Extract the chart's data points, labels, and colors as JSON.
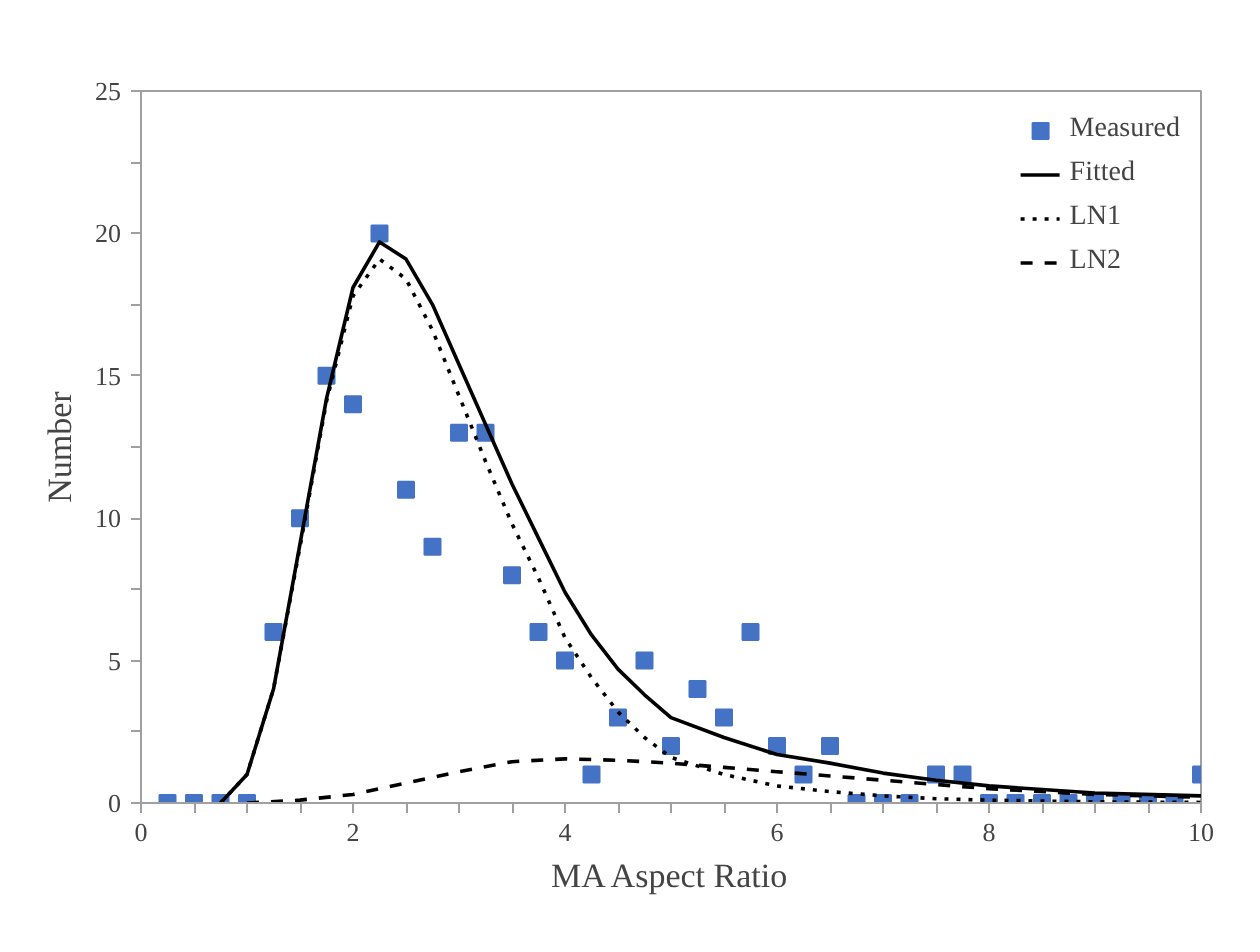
{
  "chart_data": {
    "type": "line",
    "xlabel": "MA Aspect Ratio",
    "ylabel": "Number",
    "xlim": [
      0,
      10
    ],
    "ylim": [
      0,
      25
    ],
    "xticks": [
      0,
      {
        "value": 0.5,
        "label": null
      },
      2,
      {
        "value": 1,
        "label": null
      },
      {
        "value": 1.5,
        "label": null
      },
      {
        "value": 2.5,
        "label": null
      },
      {
        "value": 3,
        "label": null
      },
      {
        "value": 3.5,
        "label": null
      },
      4,
      {
        "value": 4.5,
        "label": null
      },
      {
        "value": 5,
        "label": null
      },
      {
        "value": 5.5,
        "label": null
      },
      6,
      {
        "value": 6.5,
        "label": null
      },
      {
        "value": 7,
        "label": null
      },
      {
        "value": 7.5,
        "label": null
      },
      8,
      {
        "value": 8.5,
        "label": null
      },
      {
        "value": 9,
        "label": null
      },
      {
        "value": 9.5,
        "label": null
      },
      10
    ],
    "yticks": [
      0,
      {
        "value": 2.5,
        "label": null
      },
      5,
      {
        "value": 7.5,
        "label": null
      },
      10,
      {
        "value": 12.5,
        "label": null
      },
      15,
      {
        "value": 17.5,
        "label": null
      },
      20,
      {
        "value": 22.5,
        "label": null
      },
      25
    ],
    "grid": false,
    "legend": "top right",
    "series": [
      {
        "name": "Measured",
        "type": "scatter",
        "marker": "square",
        "color": "#4472c4",
        "x": [
          0.25,
          0.5,
          0.75,
          1,
          1.25,
          1.5,
          1.75,
          2,
          2.25,
          2.5,
          2.75,
          3,
          3.25,
          3.5,
          3.75,
          4,
          4.25,
          4.5,
          4.75,
          5,
          5.25,
          5.5,
          5.75,
          6,
          6.25,
          6.5,
          6.75,
          7,
          7.25,
          7.5,
          7.75,
          8,
          8.25,
          8.5,
          8.75,
          9,
          9.25,
          9.5,
          9.75,
          10
        ],
        "values": [
          0,
          0,
          0,
          0,
          6,
          10,
          15,
          14,
          20,
          11,
          9,
          13,
          13,
          8,
          6,
          5,
          1,
          3,
          5,
          2,
          4,
          3,
          6,
          2,
          1,
          2,
          0,
          0,
          0,
          1,
          1,
          0,
          0,
          0,
          0,
          0,
          0,
          0,
          0,
          1
        ]
      },
      {
        "name": "Fitted",
        "line_style": "solid",
        "color": "#000000",
        "x": [
          0.75,
          1,
          1.25,
          1.5,
          1.75,
          2,
          2.25,
          2.5,
          2.75,
          3,
          3.25,
          3.5,
          3.75,
          4,
          4.25,
          4.5,
          4.75,
          5,
          5.5,
          6,
          6.5,
          7,
          7.5,
          8,
          9,
          10
        ],
        "values": [
          0,
          1,
          4,
          9.1,
          14.2,
          18.1,
          19.7,
          19.1,
          17.5,
          15.4,
          13.3,
          11.2,
          9.3,
          7.4,
          5.9,
          4.7,
          3.8,
          3,
          2.3,
          1.7,
          1.4,
          1.05,
          0.8,
          0.6,
          0.35,
          0.25
        ]
      },
      {
        "name": "LN1",
        "line_style": "dotted",
        "color": "#000000",
        "x": [
          0.75,
          1,
          1.25,
          1.5,
          1.75,
          2,
          2.25,
          2.5,
          2.75,
          3,
          3.25,
          3.5,
          3.75,
          4,
          4.25,
          4.5,
          4.75,
          5,
          5.5,
          6,
          6.5,
          7,
          7.5,
          8,
          9,
          10
        ],
        "values": [
          0,
          1,
          4,
          9,
          14.1,
          17.8,
          19.1,
          18.4,
          16.6,
          14.3,
          12,
          9.8,
          7.9,
          5.8,
          4.4,
          3.2,
          2.3,
          1.6,
          1,
          0.6,
          0.4,
          0.25,
          0.15,
          0.1,
          0.04,
          0.02
        ]
      },
      {
        "name": "LN2",
        "line_style": "dashed",
        "color": "#000000",
        "x": [
          1,
          1.5,
          2,
          2.5,
          3,
          3.5,
          4,
          4.5,
          5,
          5.5,
          6,
          6.5,
          7,
          7.5,
          8,
          9,
          10
        ],
        "values": [
          0,
          0.1,
          0.3,
          0.7,
          1.1,
          1.45,
          1.55,
          1.5,
          1.4,
          1.25,
          1.1,
          0.95,
          0.8,
          0.65,
          0.5,
          0.3,
          0.2
        ]
      }
    ]
  }
}
